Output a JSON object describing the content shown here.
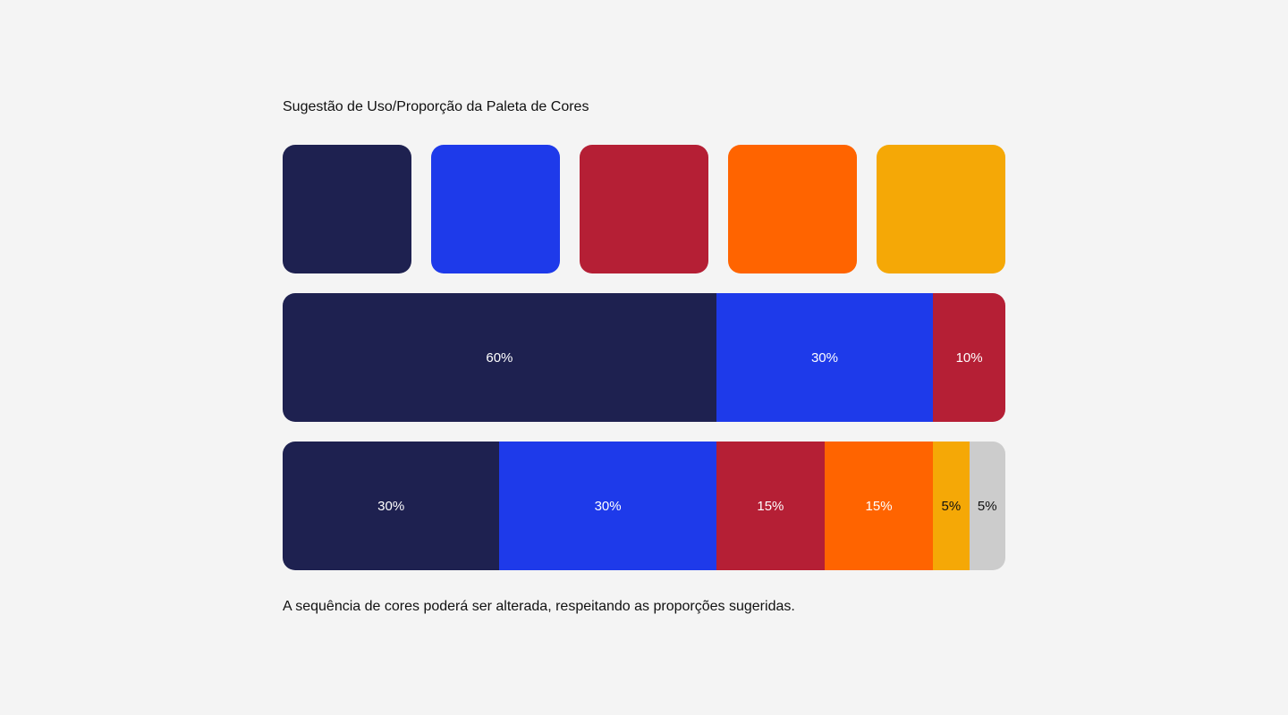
{
  "title": "Sugestão de Uso/Proporção da Paleta de Cores",
  "palette": [
    {
      "name": "navy",
      "color": "#1e2150"
    },
    {
      "name": "blue",
      "color": "#1e3aea"
    },
    {
      "name": "crimson",
      "color": "#b51f35"
    },
    {
      "name": "orange",
      "color": "#ff6400"
    },
    {
      "name": "amber",
      "color": "#f5a806"
    }
  ],
  "proportion_bar_1": [
    {
      "label": "60%",
      "value": 60,
      "color": "#1e2150",
      "text_color": "#ffffff"
    },
    {
      "label": "30%",
      "value": 30,
      "color": "#1e3aea",
      "text_color": "#ffffff"
    },
    {
      "label": "10%",
      "value": 10,
      "color": "#b51f35",
      "text_color": "#ffffff"
    }
  ],
  "proportion_bar_2": [
    {
      "label": "30%",
      "value": 30,
      "color": "#1e2150",
      "text_color": "#ffffff"
    },
    {
      "label": "30%",
      "value": 30,
      "color": "#1e3aea",
      "text_color": "#ffffff"
    },
    {
      "label": "15%",
      "value": 15,
      "color": "#b51f35",
      "text_color": "#ffffff"
    },
    {
      "label": "15%",
      "value": 15,
      "color": "#ff6400",
      "text_color": "#ffffff"
    },
    {
      "label": "5%",
      "value": 5,
      "color": "#f5a806",
      "text_color": "#111111"
    },
    {
      "label": "5%",
      "value": 5,
      "color": "#cccccc",
      "text_color": "#111111"
    }
  ],
  "footnote": "A sequência de cores poderá ser alterada, respeitando as proporções sugeridas."
}
